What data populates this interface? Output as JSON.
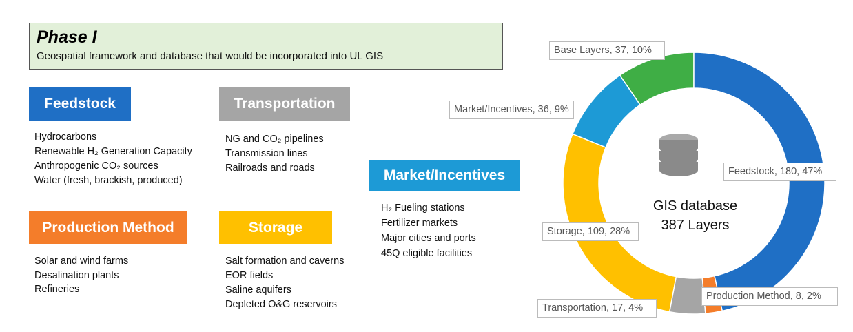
{
  "header": {
    "title": "Phase I",
    "subtitle": "Geospatial framework and database that would be incorporated into UL GIS"
  },
  "groups": [
    {
      "title": "Feedstock",
      "color": "#1f6fc5",
      "items": [
        "Hydrocarbons",
        "Renewable H₂ Generation Capacity",
        "Anthropogenic CO₂ sources",
        "Water (fresh, brackish, produced)"
      ]
    },
    {
      "title": "Transportation",
      "color": "#a5a5a5",
      "items": [
        "NG and CO₂ pipelines",
        "Transmission lines",
        "Railroads and roads"
      ]
    },
    {
      "title": "Market/Incentives",
      "color": "#1d9ad6",
      "items": [
        "H₂ Fueling stations",
        "Fertilizer markets",
        "Major cities and ports",
        "45Q eligible facilities"
      ]
    },
    {
      "title": "Production Method",
      "color": "#f47d2a",
      "items": [
        "Solar and wind farms",
        "Desalination plants",
        "Refineries"
      ]
    },
    {
      "title": "Storage",
      "color": "#ffc000",
      "items": [
        "Salt formation and caverns",
        "EOR fields",
        "Saline aquifers",
        "Depleted O&G reservoirs"
      ]
    }
  ],
  "chart_data": {
    "type": "pie",
    "center_title": "GIS database",
    "center_subtitle": "387 Layers",
    "categories": [
      "Feedstock",
      "Production Method",
      "Transportation",
      "Storage",
      "Market/Incentives",
      "Base Layers"
    ],
    "values": [
      180,
      8,
      17,
      109,
      36,
      37
    ],
    "percents": [
      47,
      2,
      4,
      28,
      9,
      10
    ],
    "value_labels": [
      "Feedstock, 180, 47%",
      "Production Method, 8, 2%",
      "Transportation, 17, 4%",
      "Storage, 109, 28%",
      "Market/Incentives, 36, 9%",
      "Base Layers, 37, 10%"
    ],
    "colors": [
      "#1f6fc5",
      "#f47d2a",
      "#a5a5a5",
      "#ffc000",
      "#1d9ad6",
      "#3fae45"
    ]
  }
}
